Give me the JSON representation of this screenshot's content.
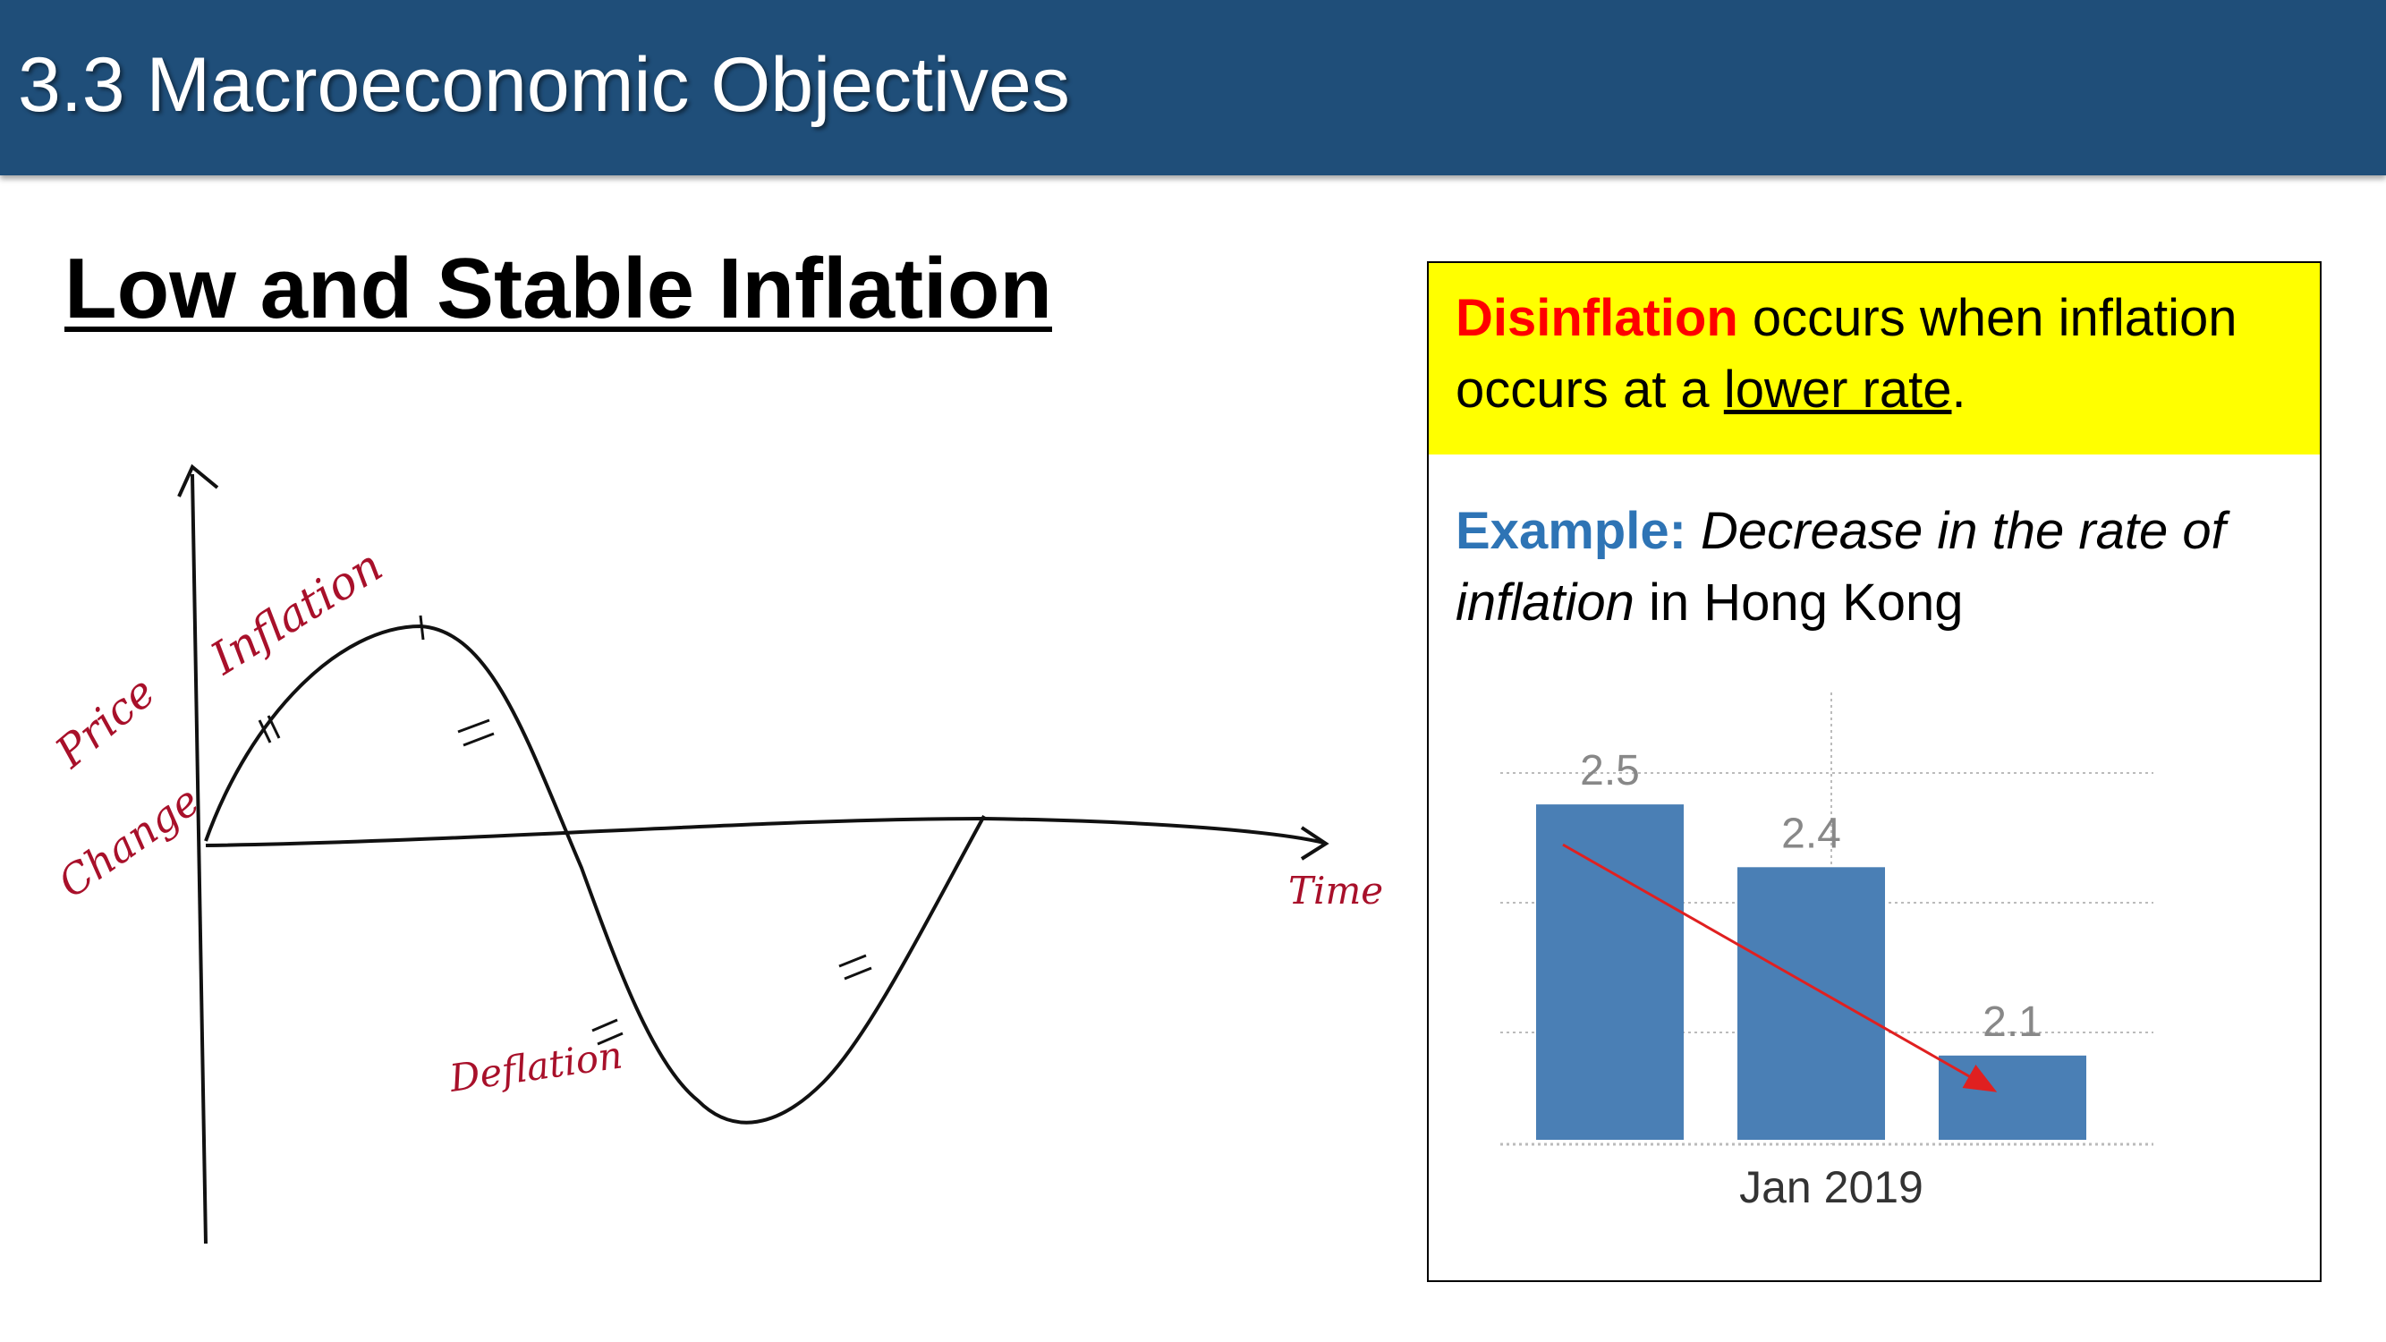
{
  "slide": {
    "title": "3.3 Macroeconomic Objectives",
    "subheading": "Low and Stable Inflation"
  },
  "sketch": {
    "y_axis_label_line1": "Price",
    "y_axis_label_line2": "Change",
    "x_axis_label": "Time",
    "peak_label": "Inflation",
    "trough_label": "Deflation"
  },
  "info_box": {
    "definition_term": "Disinflation",
    "definition_text_1": " occurs when inflation occurs at a ",
    "definition_underlined": "lower rate",
    "definition_end": ".",
    "example_label": "Example:",
    "example_italic": " Decrease in the rate of inflation",
    "example_rest": " in Hong Kong",
    "colors": {
      "definition_background": "#ffff00",
      "definition_term": "#ff0000",
      "example_label": "#2e74b5",
      "bars": "#4a7fb5",
      "trend_arrow": "#e02020"
    }
  },
  "chart_data": {
    "type": "bar",
    "categories": [
      "",
      "",
      ""
    ],
    "values": [
      2.5,
      2.4,
      2.1
    ],
    "value_labels": [
      "2.5",
      "2.4",
      "2.1"
    ],
    "xlabel": "Jan 2019",
    "ylim": [
      2.0,
      2.5
    ],
    "grid": true,
    "annotation": "trend-arrow-down"
  }
}
